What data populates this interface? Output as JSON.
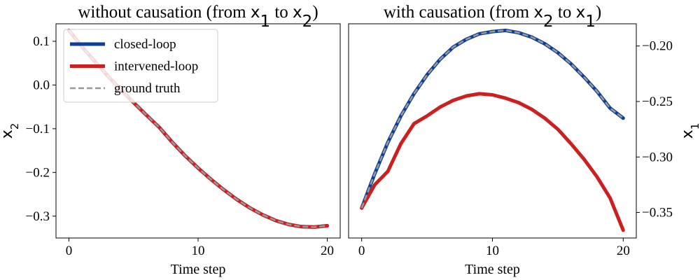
{
  "chart_data": [
    {
      "type": "line",
      "title": {
        "pre": "without causation (from ",
        "a": "x",
        "a_sub": "1",
        "mid": " to ",
        "b": "x",
        "b_sub": "2",
        "post": ")"
      },
      "xlabel": "Time step",
      "ylabel": {
        "base": "x",
        "sub": "2"
      },
      "ylabel_side": "left",
      "xlim": [
        -1,
        21
      ],
      "ylim": [
        -0.35,
        0.14
      ],
      "xticks": [
        0,
        10,
        20
      ],
      "xtick_labels": [
        "0",
        "10",
        "20"
      ],
      "yticks": [
        0.1,
        0.0,
        -0.1,
        -0.2,
        -0.3
      ],
      "ytick_labels": [
        "0.1",
        "0.0",
        "−0.1",
        "−0.2",
        "−0.3"
      ],
      "legend": {
        "placement": "upper left",
        "entries": [
          "closed-loop",
          "intervened-loop",
          "ground truth"
        ]
      },
      "x": [
        0,
        1,
        2,
        3,
        4,
        5,
        6,
        7,
        8,
        9,
        10,
        11,
        12,
        13,
        14,
        15,
        16,
        17,
        18,
        19,
        20
      ],
      "series": [
        {
          "name": "closed-loop",
          "color": "#0d3f99",
          "style": "solid",
          "values": [
            0.125,
            0.088,
            0.054,
            0.021,
            -0.01,
            -0.04,
            -0.069,
            -0.097,
            -0.131,
            -0.162,
            -0.19,
            -0.216,
            -0.24,
            -0.262,
            -0.281,
            -0.297,
            -0.31,
            -0.319,
            -0.324,
            -0.325,
            -0.322
          ]
        },
        {
          "name": "intervened-loop",
          "color": "#cc2020",
          "style": "solid",
          "values": [
            0.125,
            0.088,
            0.054,
            0.021,
            -0.01,
            -0.04,
            -0.069,
            -0.097,
            -0.131,
            -0.162,
            -0.19,
            -0.216,
            -0.24,
            -0.262,
            -0.281,
            -0.297,
            -0.31,
            -0.319,
            -0.324,
            -0.325,
            -0.322
          ]
        },
        {
          "name": "ground truth",
          "color": "#999999",
          "style": "dashed",
          "values": [
            0.125,
            0.088,
            0.054,
            0.021,
            -0.01,
            -0.04,
            -0.069,
            -0.097,
            -0.131,
            -0.162,
            -0.19,
            -0.216,
            -0.24,
            -0.262,
            -0.281,
            -0.297,
            -0.31,
            -0.319,
            -0.324,
            -0.325,
            -0.322
          ]
        }
      ]
    },
    {
      "type": "line",
      "title": {
        "pre": "with causation (from ",
        "a": "x",
        "a_sub": "2",
        "mid": " to ",
        "b": "x",
        "b_sub": "1",
        "post": ")"
      },
      "xlabel": "Time step",
      "ylabel": {
        "base": "x",
        "sub": "1"
      },
      "ylabel_side": "right",
      "xlim": [
        -1,
        21
      ],
      "ylim": [
        -0.373,
        -0.18
      ],
      "xticks": [
        0,
        10,
        20
      ],
      "xtick_labels": [
        "0",
        "10",
        "20"
      ],
      "yticks": [
        -0.2,
        -0.25,
        -0.3,
        -0.35
      ],
      "ytick_labels": [
        "−0.20",
        "−0.25",
        "−0.30",
        "−0.35"
      ],
      "legend": null,
      "x": [
        0,
        1,
        2,
        3,
        4,
        5,
        6,
        7,
        8,
        9,
        10,
        11,
        12,
        13,
        14,
        15,
        16,
        17,
        18,
        19,
        20
      ],
      "series": [
        {
          "name": "closed-loop",
          "color": "#0d3f99",
          "style": "solid",
          "values": [
            -0.346,
            -0.315,
            -0.287,
            -0.263,
            -0.243,
            -0.226,
            -0.212,
            -0.201,
            -0.194,
            -0.189,
            -0.187,
            -0.186,
            -0.188,
            -0.192,
            -0.198,
            -0.206,
            -0.216,
            -0.228,
            -0.241,
            -0.256,
            -0.265
          ]
        },
        {
          "name": "intervened-loop",
          "color": "#cc2020",
          "style": "solid",
          "values": [
            -0.346,
            -0.325,
            -0.313,
            -0.288,
            -0.27,
            -0.263,
            -0.255,
            -0.249,
            -0.245,
            -0.243,
            -0.244,
            -0.247,
            -0.251,
            -0.257,
            -0.265,
            -0.275,
            -0.288,
            -0.302,
            -0.318,
            -0.337,
            -0.366
          ]
        },
        {
          "name": "ground truth",
          "color": "#999999",
          "style": "dashed",
          "values": [
            -0.346,
            -0.315,
            -0.287,
            -0.263,
            -0.243,
            -0.226,
            -0.212,
            -0.201,
            -0.194,
            -0.189,
            -0.187,
            -0.186,
            -0.188,
            -0.192,
            -0.198,
            -0.206,
            -0.216,
            -0.228,
            -0.241,
            -0.256,
            -0.265
          ]
        }
      ]
    }
  ]
}
